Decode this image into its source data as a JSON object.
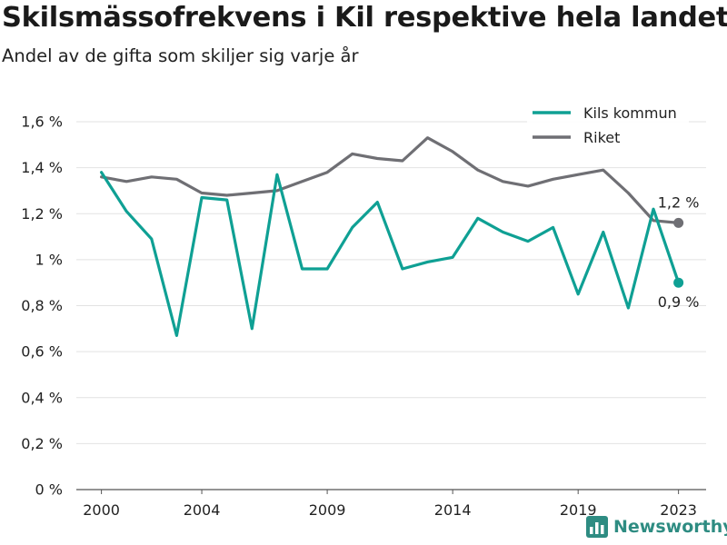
{
  "header": {
    "title": "Skilsmässofrekvens i Kil respektive hela landet",
    "subtitle": "Andel av de gifta som skiljer sig varje år"
  },
  "brand": {
    "name": "Newsworthy",
    "icon": "bar-chart-logo-icon",
    "color": "#2e8c82"
  },
  "chart_data": {
    "type": "line",
    "x": [
      2000,
      2001,
      2002,
      2003,
      2004,
      2005,
      2006,
      2007,
      2008,
      2009,
      2010,
      2011,
      2012,
      2013,
      2014,
      2015,
      2016,
      2017,
      2018,
      2019,
      2020,
      2021,
      2022,
      2023
    ],
    "series": [
      {
        "name": "Kils kommun",
        "color": "#0fa094",
        "values": [
          1.38,
          1.21,
          1.09,
          0.67,
          1.27,
          1.26,
          0.7,
          1.37,
          0.96,
          0.96,
          1.14,
          1.25,
          0.96,
          0.99,
          1.01,
          1.18,
          1.12,
          1.08,
          1.14,
          0.85,
          1.12,
          0.79,
          1.22,
          0.9
        ],
        "end_label": "0,9 %"
      },
      {
        "name": "Riket",
        "color": "#6f6f74",
        "values": [
          1.36,
          1.34,
          1.36,
          1.35,
          1.29,
          1.28,
          1.29,
          1.3,
          1.34,
          1.38,
          1.46,
          1.44,
          1.43,
          1.53,
          1.47,
          1.39,
          1.34,
          1.32,
          1.35,
          1.37,
          1.39,
          1.29,
          1.17,
          1.16
        ],
        "end_label": "1,2 %"
      }
    ],
    "ylim": [
      0,
      1.6
    ],
    "yticks": [
      0,
      0.2,
      0.4,
      0.6,
      0.8,
      1.0,
      1.2,
      1.4,
      1.6
    ],
    "ytick_labels": [
      "0 %",
      "0,2 %",
      "0,4 %",
      "0,6 %",
      "0,8 %",
      "1 %",
      "1,2 %",
      "1,4 %",
      "1,6 %"
    ],
    "xlim": [
      1999,
      2024.1
    ],
    "xticks": [
      2000,
      2004,
      2009,
      2014,
      2019,
      2023
    ],
    "xtick_labels": [
      "2000",
      "2004",
      "2009",
      "2014",
      "2019",
      "2023"
    ],
    "grid": true,
    "legend_position": "top-right"
  }
}
